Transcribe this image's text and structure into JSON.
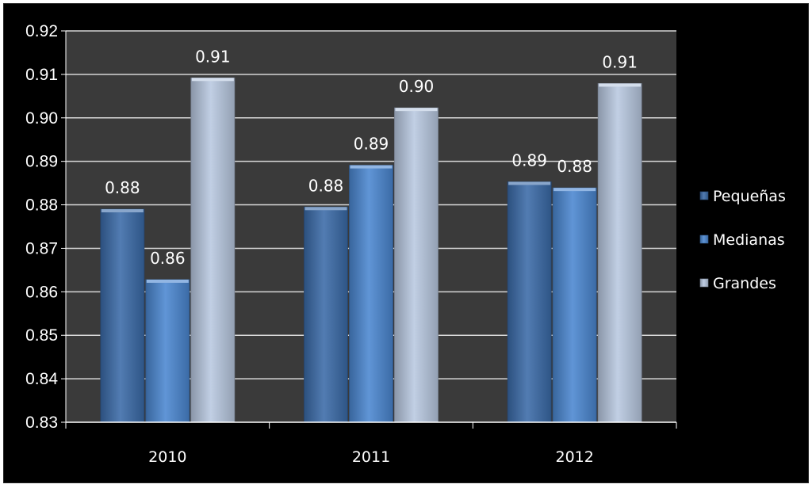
{
  "chart_data": {
    "type": "bar",
    "categories": [
      "2010",
      "2011",
      "2012"
    ],
    "series": [
      {
        "name": "Pequeñas",
        "values": [
          0.879,
          0.8795,
          0.8853
        ],
        "labels": [
          "0.88",
          "0.88",
          "0.89"
        ],
        "color": "#3a6aa8"
      },
      {
        "name": "Medianas",
        "values": [
          0.8628,
          0.8891,
          0.8839
        ],
        "labels": [
          "0.86",
          "0.89",
          "0.88"
        ],
        "color": "#4a86d0"
      },
      {
        "name": "Grandes",
        "values": [
          0.9092,
          0.9023,
          0.9079
        ],
        "labels": [
          "0.91",
          "0.90",
          "0.91"
        ],
        "color": "#b8c8e0"
      }
    ],
    "ylim": [
      0.83,
      0.92
    ],
    "yticks": [
      "0.83",
      "0.84",
      "0.85",
      "0.86",
      "0.87",
      "0.88",
      "0.89",
      "0.90",
      "0.91",
      "0.92"
    ],
    "plot_background": "#3a3a3a",
    "frame_background": "#000000",
    "grid": true,
    "legend_position": "right",
    "title": "",
    "xlabel": "",
    "ylabel": ""
  }
}
